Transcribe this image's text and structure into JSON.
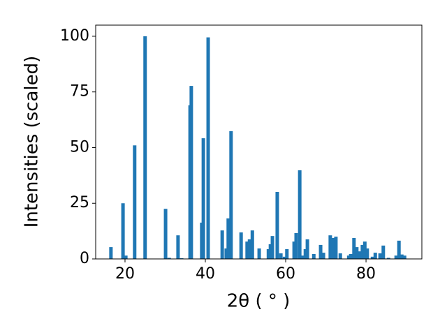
{
  "chart_data": {
    "type": "bar",
    "xlabel": "2θ ( ° )",
    "ylabel": "Intensities (scaled)",
    "color": "#1f77b4",
    "x": [
      16.5,
      19.5,
      20.2,
      22.4,
      25.0,
      30.1,
      31.0,
      33.2,
      34.1,
      36.2,
      36.5,
      39.1,
      39.5,
      40.7,
      44.2,
      45.2,
      45.7,
      46.4,
      48.9,
      50.4,
      51.0,
      51.7,
      53.4,
      55.7,
      56.2,
      56.7,
      57.9,
      58.8,
      59.7,
      60.3,
      62.1,
      62.6,
      63.5,
      64.2,
      64.9,
      65.4,
      67.0,
      68.7,
      69.4,
      71.1,
      71.7,
      72.5,
      73.6,
      75.7,
      76.2,
      77.0,
      77.7,
      78.4,
      79.1,
      79.7,
      80.3,
      81.6,
      82.3,
      83.5,
      84.3,
      85.6,
      87.5,
      88.2,
      88.9,
      89.6
    ],
    "values": [
      5.3,
      25,
      1.5,
      51,
      100,
      22.5,
      0.5,
      10.6,
      0.3,
      69,
      77.7,
      16.3,
      54.2,
      99.5,
      12.8,
      4.7,
      18.2,
      57.4,
      11.9,
      7.8,
      8.8,
      12.8,
      4.7,
      4.4,
      6.6,
      10.3,
      30.1,
      2.5,
      1,
      4.4,
      7.8,
      11.6,
      39.8,
      1.5,
      4.4,
      8.8,
      2.2,
      6.3,
      2.8,
      10.6,
      9.4,
      10,
      2.5,
      1.5,
      2.2,
      9.4,
      5.3,
      3.4,
      6.3,
      7.8,
      4.7,
      1,
      2.8,
      2.5,
      6,
      0.5,
      1.5,
      8.2,
      2,
      1.5
    ],
    "xlim": [
      12.7,
      93.9
    ],
    "xticks": [
      20,
      40,
      60,
      80
    ],
    "ylim": [
      0,
      105
    ],
    "yticks": [
      0,
      25,
      50,
      75,
      100
    ]
  }
}
